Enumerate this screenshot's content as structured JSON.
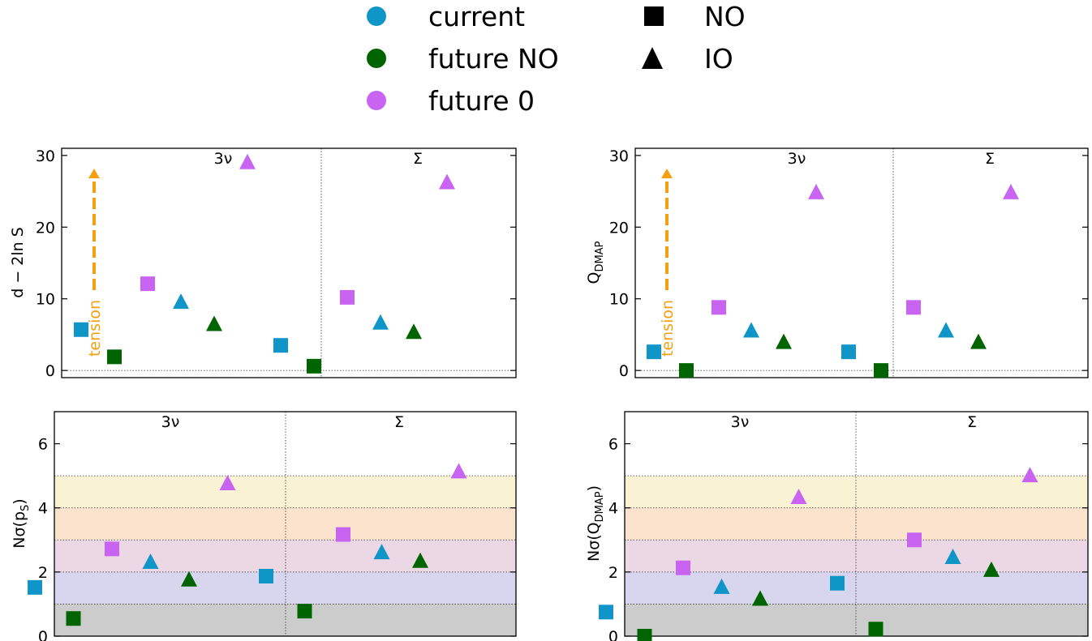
{
  "legend": {
    "colors": [
      {
        "label": "current",
        "color": "#0f95c8"
      },
      {
        "label": "future NO",
        "color": "#006400"
      },
      {
        "label": "future 0",
        "color": "#c964f2"
      }
    ],
    "markers": [
      {
        "label": "NO",
        "marker": "square-icon"
      },
      {
        "label": "IO",
        "marker": "triangle-icon"
      }
    ]
  },
  "annotation": {
    "arrow_label": "tension",
    "arrow_color": "#f5a011"
  },
  "section_labels": [
    "3ν",
    "Σ"
  ],
  "band_colors": [
    "#cccccc",
    "#d8d5ee",
    "#ecd7e4",
    "#fbe3cd",
    "#f9f3d4"
  ],
  "chart_data": [
    {
      "type": "scatter",
      "ylabel": "d − 2ln S",
      "ylim": [
        -1,
        31
      ],
      "yticks": [
        0,
        10,
        20,
        30
      ],
      "points": [
        {
          "x": 1,
          "y": 5.7,
          "color": "#0f95c8",
          "marker": "square"
        },
        {
          "x": 2,
          "y": 1.9,
          "color": "#006400",
          "marker": "square"
        },
        {
          "x": 3,
          "y": 12.1,
          "color": "#c964f2",
          "marker": "square"
        },
        {
          "x": 4,
          "y": 9.5,
          "color": "#0f95c8",
          "marker": "triangle"
        },
        {
          "x": 5,
          "y": 6.4,
          "color": "#006400",
          "marker": "triangle"
        },
        {
          "x": 6,
          "y": 29.0,
          "color": "#c964f2",
          "marker": "triangle"
        },
        {
          "x": 7,
          "y": 3.5,
          "color": "#0f95c8",
          "marker": "square"
        },
        {
          "x": 8,
          "y": 0.6,
          "color": "#006400",
          "marker": "square"
        },
        {
          "x": 9,
          "y": 10.2,
          "color": "#c964f2",
          "marker": "square"
        },
        {
          "x": 10,
          "y": 6.6,
          "color": "#0f95c8",
          "marker": "triangle"
        },
        {
          "x": 11,
          "y": 5.3,
          "color": "#006400",
          "marker": "triangle"
        },
        {
          "x": 12,
          "y": 26.2,
          "color": "#c964f2",
          "marker": "triangle"
        }
      ]
    },
    {
      "type": "scatter",
      "ylabel": "Q_DMAP",
      "ylim": [
        -1,
        31
      ],
      "yticks": [
        0,
        10,
        20,
        30
      ],
      "points": [
        {
          "x": 1,
          "y": 2.6,
          "color": "#0f95c8",
          "marker": "square"
        },
        {
          "x": 2,
          "y": 0.0,
          "color": "#006400",
          "marker": "square"
        },
        {
          "x": 3,
          "y": 8.8,
          "color": "#c964f2",
          "marker": "square"
        },
        {
          "x": 4,
          "y": 5.5,
          "color": "#0f95c8",
          "marker": "triangle"
        },
        {
          "x": 5,
          "y": 3.9,
          "color": "#006400",
          "marker": "triangle"
        },
        {
          "x": 6,
          "y": 24.8,
          "color": "#c964f2",
          "marker": "triangle"
        },
        {
          "x": 7,
          "y": 2.6,
          "color": "#0f95c8",
          "marker": "square"
        },
        {
          "x": 8,
          "y": 0.0,
          "color": "#006400",
          "marker": "square"
        },
        {
          "x": 9,
          "y": 8.8,
          "color": "#c964f2",
          "marker": "square"
        },
        {
          "x": 10,
          "y": 5.5,
          "color": "#0f95c8",
          "marker": "triangle"
        },
        {
          "x": 11,
          "y": 3.9,
          "color": "#006400",
          "marker": "triangle"
        },
        {
          "x": 12,
          "y": 24.8,
          "color": "#c964f2",
          "marker": "triangle"
        }
      ]
    },
    {
      "type": "scatter",
      "ylabel": "Nσ(p_S)",
      "ylim": [
        0,
        7
      ],
      "yticks": [
        0,
        2,
        4,
        6
      ],
      "bands": [
        0,
        1,
        2,
        3,
        4,
        5
      ],
      "points": [
        {
          "x": 1,
          "y": 1.52,
          "color": "#0f95c8",
          "marker": "square"
        },
        {
          "x": 2,
          "y": 0.55,
          "color": "#006400",
          "marker": "square"
        },
        {
          "x": 3,
          "y": 2.72,
          "color": "#c964f2",
          "marker": "square"
        },
        {
          "x": 4,
          "y": 2.3,
          "color": "#0f95c8",
          "marker": "triangle"
        },
        {
          "x": 5,
          "y": 1.75,
          "color": "#006400",
          "marker": "triangle"
        },
        {
          "x": 6,
          "y": 4.75,
          "color": "#c964f2",
          "marker": "triangle"
        },
        {
          "x": 7,
          "y": 1.87,
          "color": "#0f95c8",
          "marker": "square"
        },
        {
          "x": 8,
          "y": 0.78,
          "color": "#006400",
          "marker": "square"
        },
        {
          "x": 9,
          "y": 3.17,
          "color": "#c964f2",
          "marker": "square"
        },
        {
          "x": 10,
          "y": 2.6,
          "color": "#0f95c8",
          "marker": "triangle"
        },
        {
          "x": 11,
          "y": 2.33,
          "color": "#006400",
          "marker": "triangle"
        },
        {
          "x": 12,
          "y": 5.12,
          "color": "#c964f2",
          "marker": "triangle"
        }
      ]
    },
    {
      "type": "scatter",
      "ylabel": "Nσ(Q_DMAP)",
      "ylim": [
        0,
        7
      ],
      "yticks": [
        0,
        2,
        4,
        6
      ],
      "bands": [
        0,
        1,
        2,
        3,
        4,
        5
      ],
      "points": [
        {
          "x": 1,
          "y": 0.75,
          "color": "#0f95c8",
          "marker": "square"
        },
        {
          "x": 2,
          "y": 0.0,
          "color": "#006400",
          "marker": "square"
        },
        {
          "x": 3,
          "y": 2.13,
          "color": "#c964f2",
          "marker": "square"
        },
        {
          "x": 4,
          "y": 1.52,
          "color": "#0f95c8",
          "marker": "triangle"
        },
        {
          "x": 5,
          "y": 1.15,
          "color": "#006400",
          "marker": "triangle"
        },
        {
          "x": 6,
          "y": 4.32,
          "color": "#c964f2",
          "marker": "triangle"
        },
        {
          "x": 7,
          "y": 1.65,
          "color": "#0f95c8",
          "marker": "square"
        },
        {
          "x": 8,
          "y": 0.22,
          "color": "#006400",
          "marker": "square"
        },
        {
          "x": 9,
          "y": 3.0,
          "color": "#c964f2",
          "marker": "square"
        },
        {
          "x": 10,
          "y": 2.45,
          "color": "#0f95c8",
          "marker": "triangle"
        },
        {
          "x": 11,
          "y": 2.05,
          "color": "#006400",
          "marker": "triangle"
        },
        {
          "x": 12,
          "y": 5.0,
          "color": "#c964f2",
          "marker": "triangle"
        }
      ]
    }
  ]
}
